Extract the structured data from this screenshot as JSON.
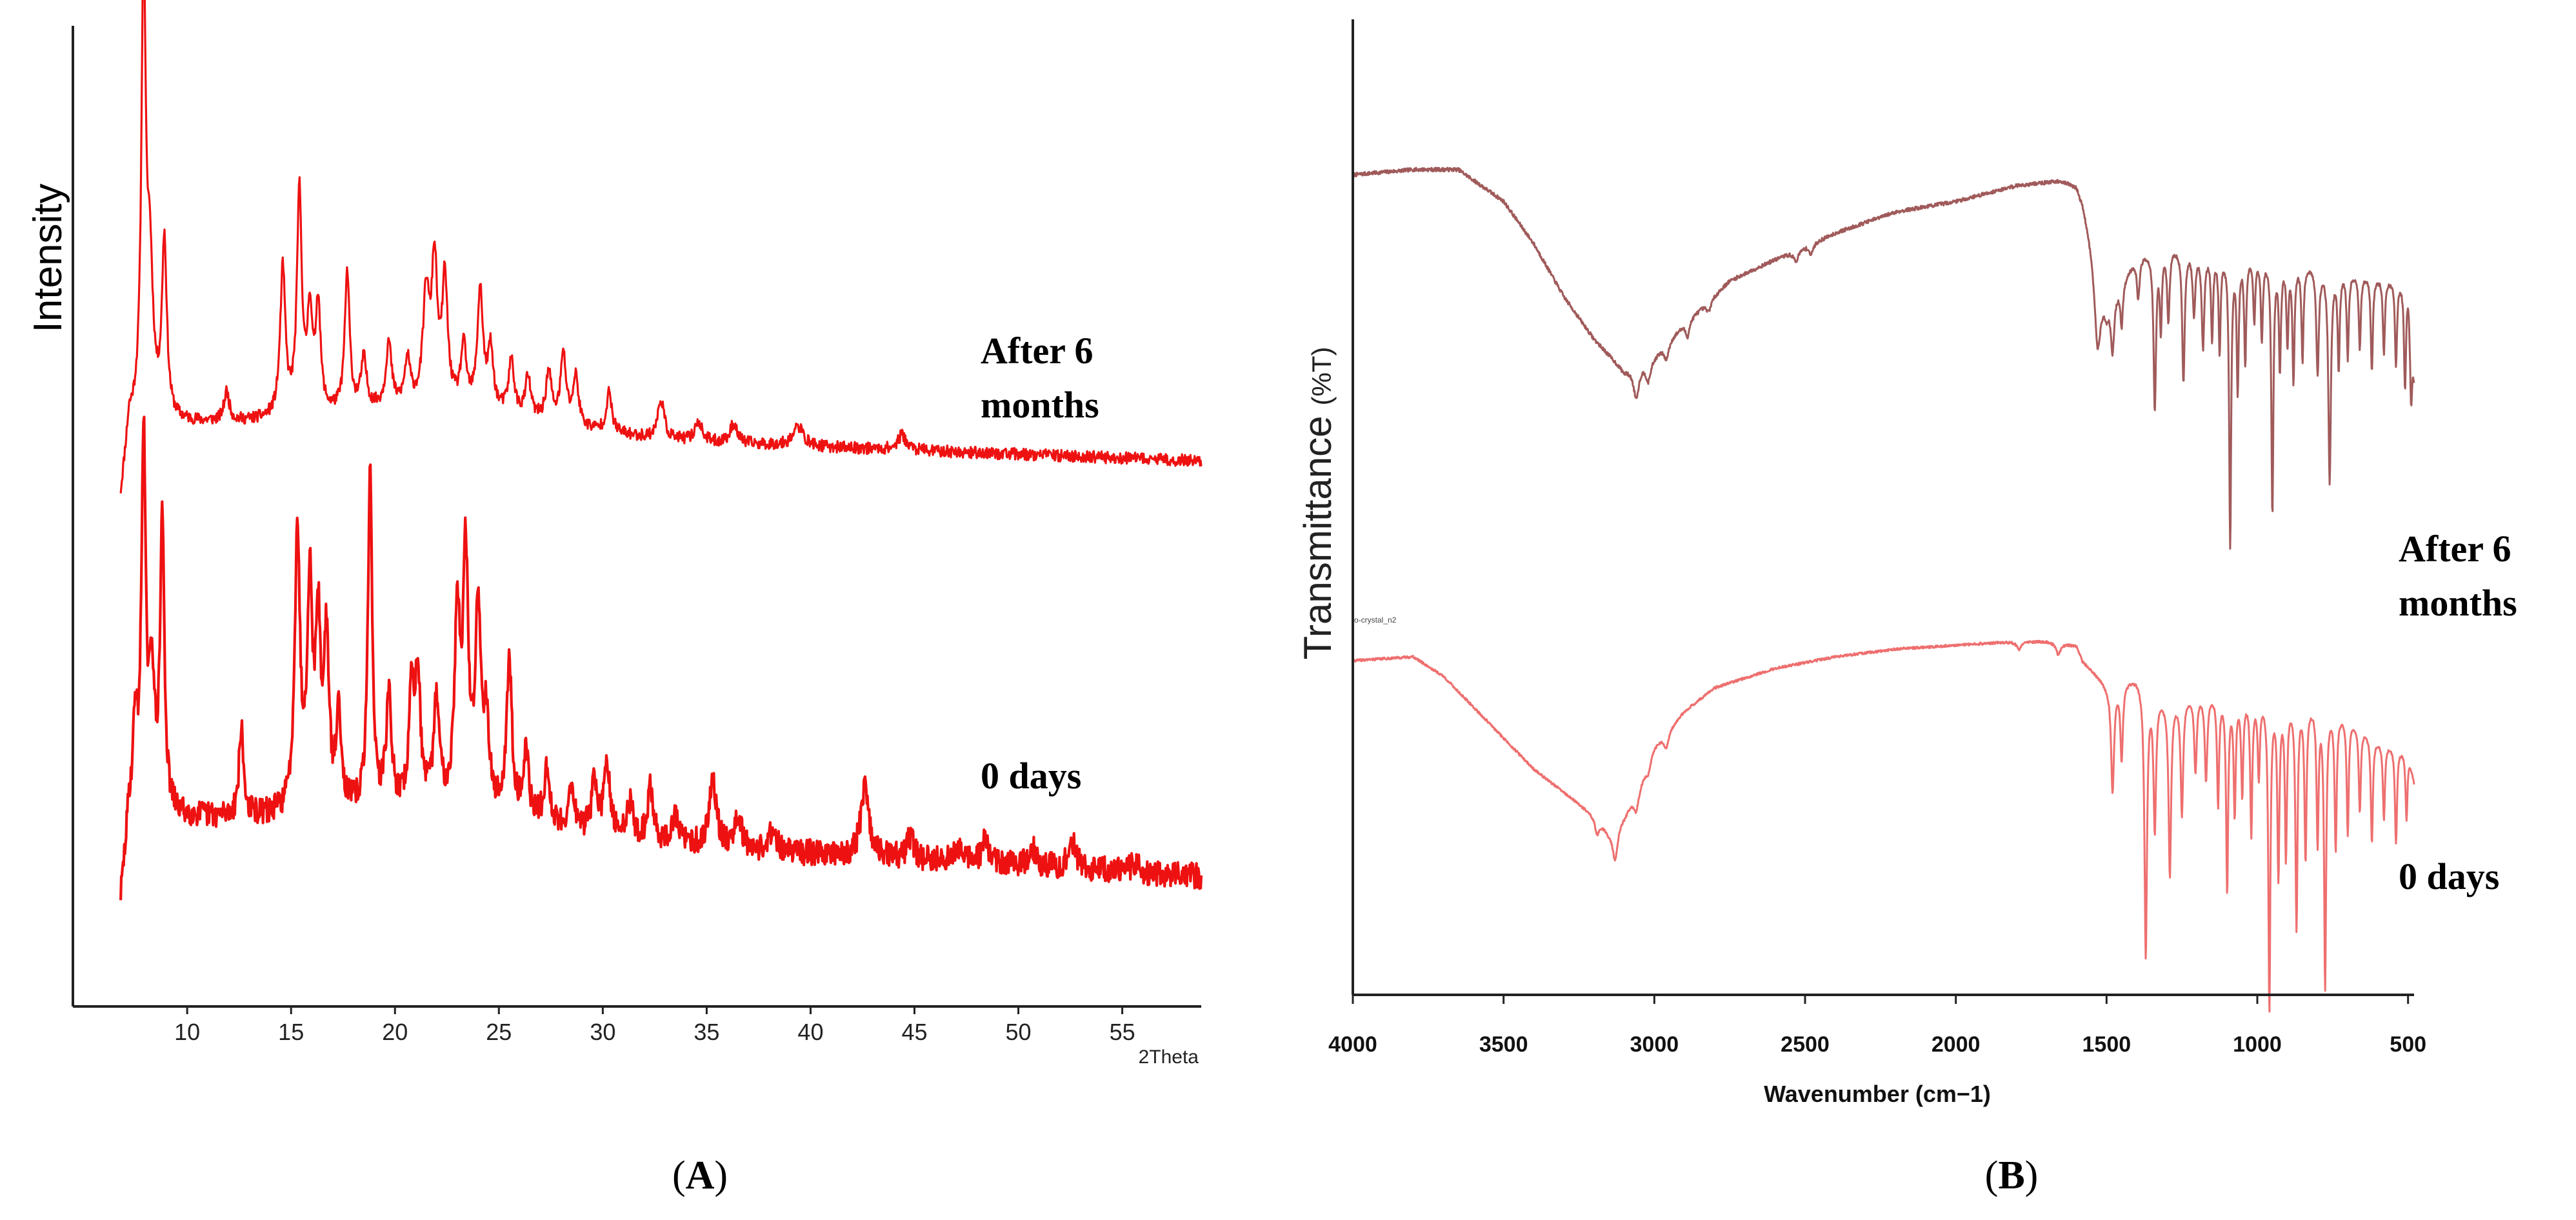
{
  "panels": {
    "A": {
      "caption_open": "(",
      "caption_letter": "A",
      "caption_close": ")"
    },
    "B": {
      "caption_open": "(",
      "caption_letter": "B",
      "caption_close": ")"
    }
  },
  "colors": {
    "xrd": "#ee1111",
    "ir_aged": "#a05a5a",
    "ir_fresh": "#ee6f6f",
    "axis": "#222222"
  },
  "chart_data": [
    {
      "id": "A",
      "type": "line",
      "title": "",
      "xlabel": "2Theta",
      "ylabel": "Intensity",
      "xlim": [
        4.5,
        58.8
      ],
      "xticks": [
        10,
        15,
        20,
        25,
        30,
        35,
        40,
        45,
        50,
        55
      ],
      "grid": false,
      "series": [
        {
          "name": "After 6 months",
          "label_lines": [
            "After 6",
            "months"
          ],
          "baseline": 14,
          "baseline_end": 6,
          "peaks": [
            [
              7.9,
              93,
              0.12
            ],
            [
              8.2,
              30,
              0.18
            ],
            [
              8.9,
              36,
              0.14
            ],
            [
              11.9,
              6,
              0.15
            ],
            [
              14.6,
              30,
              0.15
            ],
            [
              15.4,
              45,
              0.14
            ],
            [
              15.9,
              20,
              0.14
            ],
            [
              16.3,
              22,
              0.14
            ],
            [
              17.7,
              28,
              0.14
            ],
            [
              18.5,
              10,
              0.16
            ],
            [
              19.7,
              13,
              0.16
            ],
            [
              20.6,
              9,
              0.16
            ],
            [
              21.5,
              22,
              0.18
            ],
            [
              21.9,
              28,
              0.16
            ],
            [
              22.4,
              25,
              0.16
            ],
            [
              23.3,
              12,
              0.16
            ],
            [
              24.1,
              24,
              0.16
            ],
            [
              24.6,
              12,
              0.16
            ],
            [
              25.6,
              11,
              0.16
            ],
            [
              26.4,
              8,
              0.16
            ],
            [
              27.4,
              10,
              0.16
            ],
            [
              28.1,
              14,
              0.16
            ],
            [
              28.7,
              10,
              0.16
            ],
            [
              30.3,
              8,
              0.16
            ],
            [
              32.8,
              8,
              0.18
            ],
            [
              34.6,
              4,
              0.2
            ],
            [
              36.3,
              4,
              0.2
            ],
            [
              39.4,
              4,
              0.3
            ],
            [
              44.4,
              3,
              0.25
            ]
          ]
        },
        {
          "name": "0 days",
          "label_lines": [
            "0 days"
          ],
          "baseline": 18,
          "baseline_end": 4,
          "peaks": [
            [
              7.5,
              20,
              0.12
            ],
            [
              7.9,
              86,
              0.12
            ],
            [
              8.3,
              30,
              0.15
            ],
            [
              8.8,
              67,
              0.12
            ],
            [
              12.6,
              20,
              0.13
            ],
            [
              15.3,
              64,
              0.15
            ],
            [
              15.9,
              50,
              0.15
            ],
            [
              16.3,
              40,
              0.14
            ],
            [
              16.7,
              38,
              0.14
            ],
            [
              17.3,
              22,
              0.14
            ],
            [
              18.8,
              78,
              0.12
            ],
            [
              19.7,
              25,
              0.15
            ],
            [
              20.8,
              26,
              0.14
            ],
            [
              21.1,
              30,
              0.14
            ],
            [
              22.0,
              24,
              0.16
            ],
            [
              23.0,
              42,
              0.16
            ],
            [
              23.4,
              55,
              0.15
            ],
            [
              24.0,
              45,
              0.16
            ],
            [
              24.4,
              20,
              0.15
            ],
            [
              25.5,
              34,
              0.16
            ],
            [
              26.3,
              15,
              0.16
            ],
            [
              27.3,
              12,
              0.16
            ],
            [
              28.5,
              10,
              0.16
            ],
            [
              29.6,
              12,
              0.16
            ],
            [
              30.2,
              16,
              0.16
            ],
            [
              31.3,
              8,
              0.18
            ],
            [
              32.3,
              12,
              0.16
            ],
            [
              33.5,
              6,
              0.18
            ],
            [
              35.3,
              16,
              0.2
            ],
            [
              36.5,
              8,
              0.2
            ],
            [
              38.2,
              5,
              0.2
            ],
            [
              42.6,
              16,
              0.22
            ],
            [
              44.8,
              5,
              0.2
            ],
            [
              47.2,
              4,
              0.2
            ],
            [
              48.4,
              5,
              0.2
            ],
            [
              50.7,
              4,
              0.2
            ],
            [
              52.6,
              6,
              0.2
            ],
            [
              55.6,
              2,
              0.2
            ]
          ]
        }
      ]
    },
    {
      "id": "B",
      "type": "line",
      "title": "",
      "xlabel": "Wavenumber",
      "xlabel_unit": "(cm−1)",
      "ylabel": "Transmittance",
      "ylabel_unit": "(%T)",
      "xlim": [
        4000,
        480
      ],
      "xticks": [
        4000,
        3500,
        3000,
        2500,
        2000,
        1500,
        1000,
        500
      ],
      "grid": false,
      "annotation": "o-crystal_n2",
      "series": [
        {
          "name": "After 6 months",
          "label_lines": [
            "After 6",
            "months"
          ],
          "envelope": [
            [
              4000,
              95
            ],
            [
              3800,
              96
            ],
            [
              3650,
              96
            ],
            [
              3500,
              90
            ],
            [
              3400,
              82
            ],
            [
              3300,
              72
            ],
            [
              3200,
              64
            ],
            [
              3100,
              58
            ],
            [
              3000,
              61
            ],
            [
              2900,
              67
            ],
            [
              2750,
              75
            ],
            [
              2600,
              79
            ],
            [
              2400,
              84
            ],
            [
              2200,
              88
            ],
            [
              2000,
              90
            ],
            [
              1800,
              93
            ],
            [
              1650,
              94
            ],
            [
              1600,
              93
            ],
            [
              1580,
              90
            ],
            [
              1500,
              70
            ],
            [
              1400,
              80
            ],
            [
              1300,
              82
            ],
            [
              1200,
              81
            ],
            [
              1000,
              80
            ],
            [
              900,
              79
            ],
            [
              800,
              78
            ],
            [
              700,
              77
            ],
            [
              600,
              76
            ],
            [
              500,
              75
            ],
            [
              480,
              58
            ]
          ],
          "bands": [
            [
              3060,
              6,
              12
            ],
            [
              3020,
              4,
              10
            ],
            [
              2960,
              3,
              10
            ],
            [
              2890,
              3,
              8
            ],
            [
              2820,
              2,
              10
            ],
            [
              2530,
              2,
              10
            ],
            [
              2480,
              2,
              8
            ],
            [
              1530,
              15,
              12
            ],
            [
              1480,
              10,
              6
            ],
            [
              1450,
              8,
              5
            ],
            [
              1395,
              8,
              6
            ],
            [
              1340,
              30,
              5
            ],
            [
              1320,
              15,
              4
            ],
            [
              1295,
              14,
              5
            ],
            [
              1245,
              25,
              5
            ],
            [
              1210,
              12,
              5
            ],
            [
              1180,
              18,
              5
            ],
            [
              1150,
              16,
              4
            ],
            [
              1125,
              18,
              4
            ],
            [
              1090,
              55,
              4
            ],
            [
              1065,
              25,
              4
            ],
            [
              1040,
              20,
              4
            ],
            [
              1010,
              12,
              4
            ],
            [
              985,
              15,
              4
            ],
            [
              950,
              48,
              4
            ],
            [
              925,
              20,
              4
            ],
            [
              900,
              15,
              4
            ],
            [
              880,
              22,
              4
            ],
            [
              850,
              18,
              4
            ],
            [
              800,
              20,
              5
            ],
            [
              760,
              40,
              5
            ],
            [
              730,
              18,
              4
            ],
            [
              700,
              16,
              4
            ],
            [
              660,
              14,
              4
            ],
            [
              620,
              18,
              4
            ],
            [
              580,
              14,
              4
            ],
            [
              540,
              16,
              4
            ],
            [
              510,
              20,
              4
            ],
            [
              490,
              14,
              4
            ]
          ]
        },
        {
          "name": "0 days",
          "label_lines": [
            "0 days"
          ],
          "envelope": [
            [
              4000,
              86
            ],
            [
              3800,
              87
            ],
            [
              3700,
              82
            ],
            [
              3600,
              74
            ],
            [
              3500,
              66
            ],
            [
              3400,
              58
            ],
            [
              3300,
              52
            ],
            [
              3200,
              46
            ],
            [
              3150,
              42
            ],
            [
              3100,
              46
            ],
            [
              3050,
              54
            ],
            [
              3000,
              64
            ],
            [
              2900,
              73
            ],
            [
              2800,
              79
            ],
            [
              2600,
              84
            ],
            [
              2400,
              87
            ],
            [
              2200,
              89
            ],
            [
              2000,
              90
            ],
            [
              1800,
              91
            ],
            [
              1700,
              91
            ],
            [
              1600,
              90
            ],
            [
              1580,
              86
            ],
            [
              1500,
              80
            ],
            [
              1400,
              82
            ],
            [
              1300,
              76
            ],
            [
              1200,
              78
            ],
            [
              1000,
              77
            ],
            [
              900,
              76
            ],
            [
              800,
              75
            ],
            [
              700,
              72
            ],
            [
              600,
              66
            ],
            [
              500,
              63
            ],
            [
              480,
              55
            ]
          ],
          "bands": [
            [
              3190,
              4,
              8
            ],
            [
              3130,
              9,
              10
            ],
            [
              3060,
              5,
              10
            ],
            [
              3020,
              3,
              10
            ],
            [
              2960,
              4,
              10
            ],
            [
              1790,
              2,
              10
            ],
            [
              1660,
              3,
              8
            ],
            [
              1480,
              28,
              6
            ],
            [
              1450,
              20,
              5
            ],
            [
              1370,
              70,
              5
            ],
            [
              1340,
              35,
              5
            ],
            [
              1290,
              45,
              5
            ],
            [
              1250,
              30,
              5
            ],
            [
              1205,
              20,
              5
            ],
            [
              1170,
              22,
              5
            ],
            [
              1130,
              28,
              4
            ],
            [
              1100,
              50,
              4
            ],
            [
              1075,
              30,
              4
            ],
            [
              1050,
              25,
              4
            ],
            [
              1020,
              35,
              4
            ],
            [
              995,
              20,
              4
            ],
            [
              960,
              80,
              4
            ],
            [
              930,
              45,
              4
            ],
            [
              905,
              40,
              4
            ],
            [
              870,
              58,
              4
            ],
            [
              840,
              40,
              4
            ],
            [
              800,
              35,
              4
            ],
            [
              775,
              72,
              4
            ],
            [
              740,
              35,
              4
            ],
            [
              700,
              30,
              4
            ],
            [
              660,
              22,
              4
            ],
            [
              620,
              28,
              4
            ],
            [
              580,
              20,
              4
            ],
            [
              540,
              25,
              4
            ],
            [
              505,
              18,
              4
            ]
          ]
        }
      ]
    }
  ]
}
